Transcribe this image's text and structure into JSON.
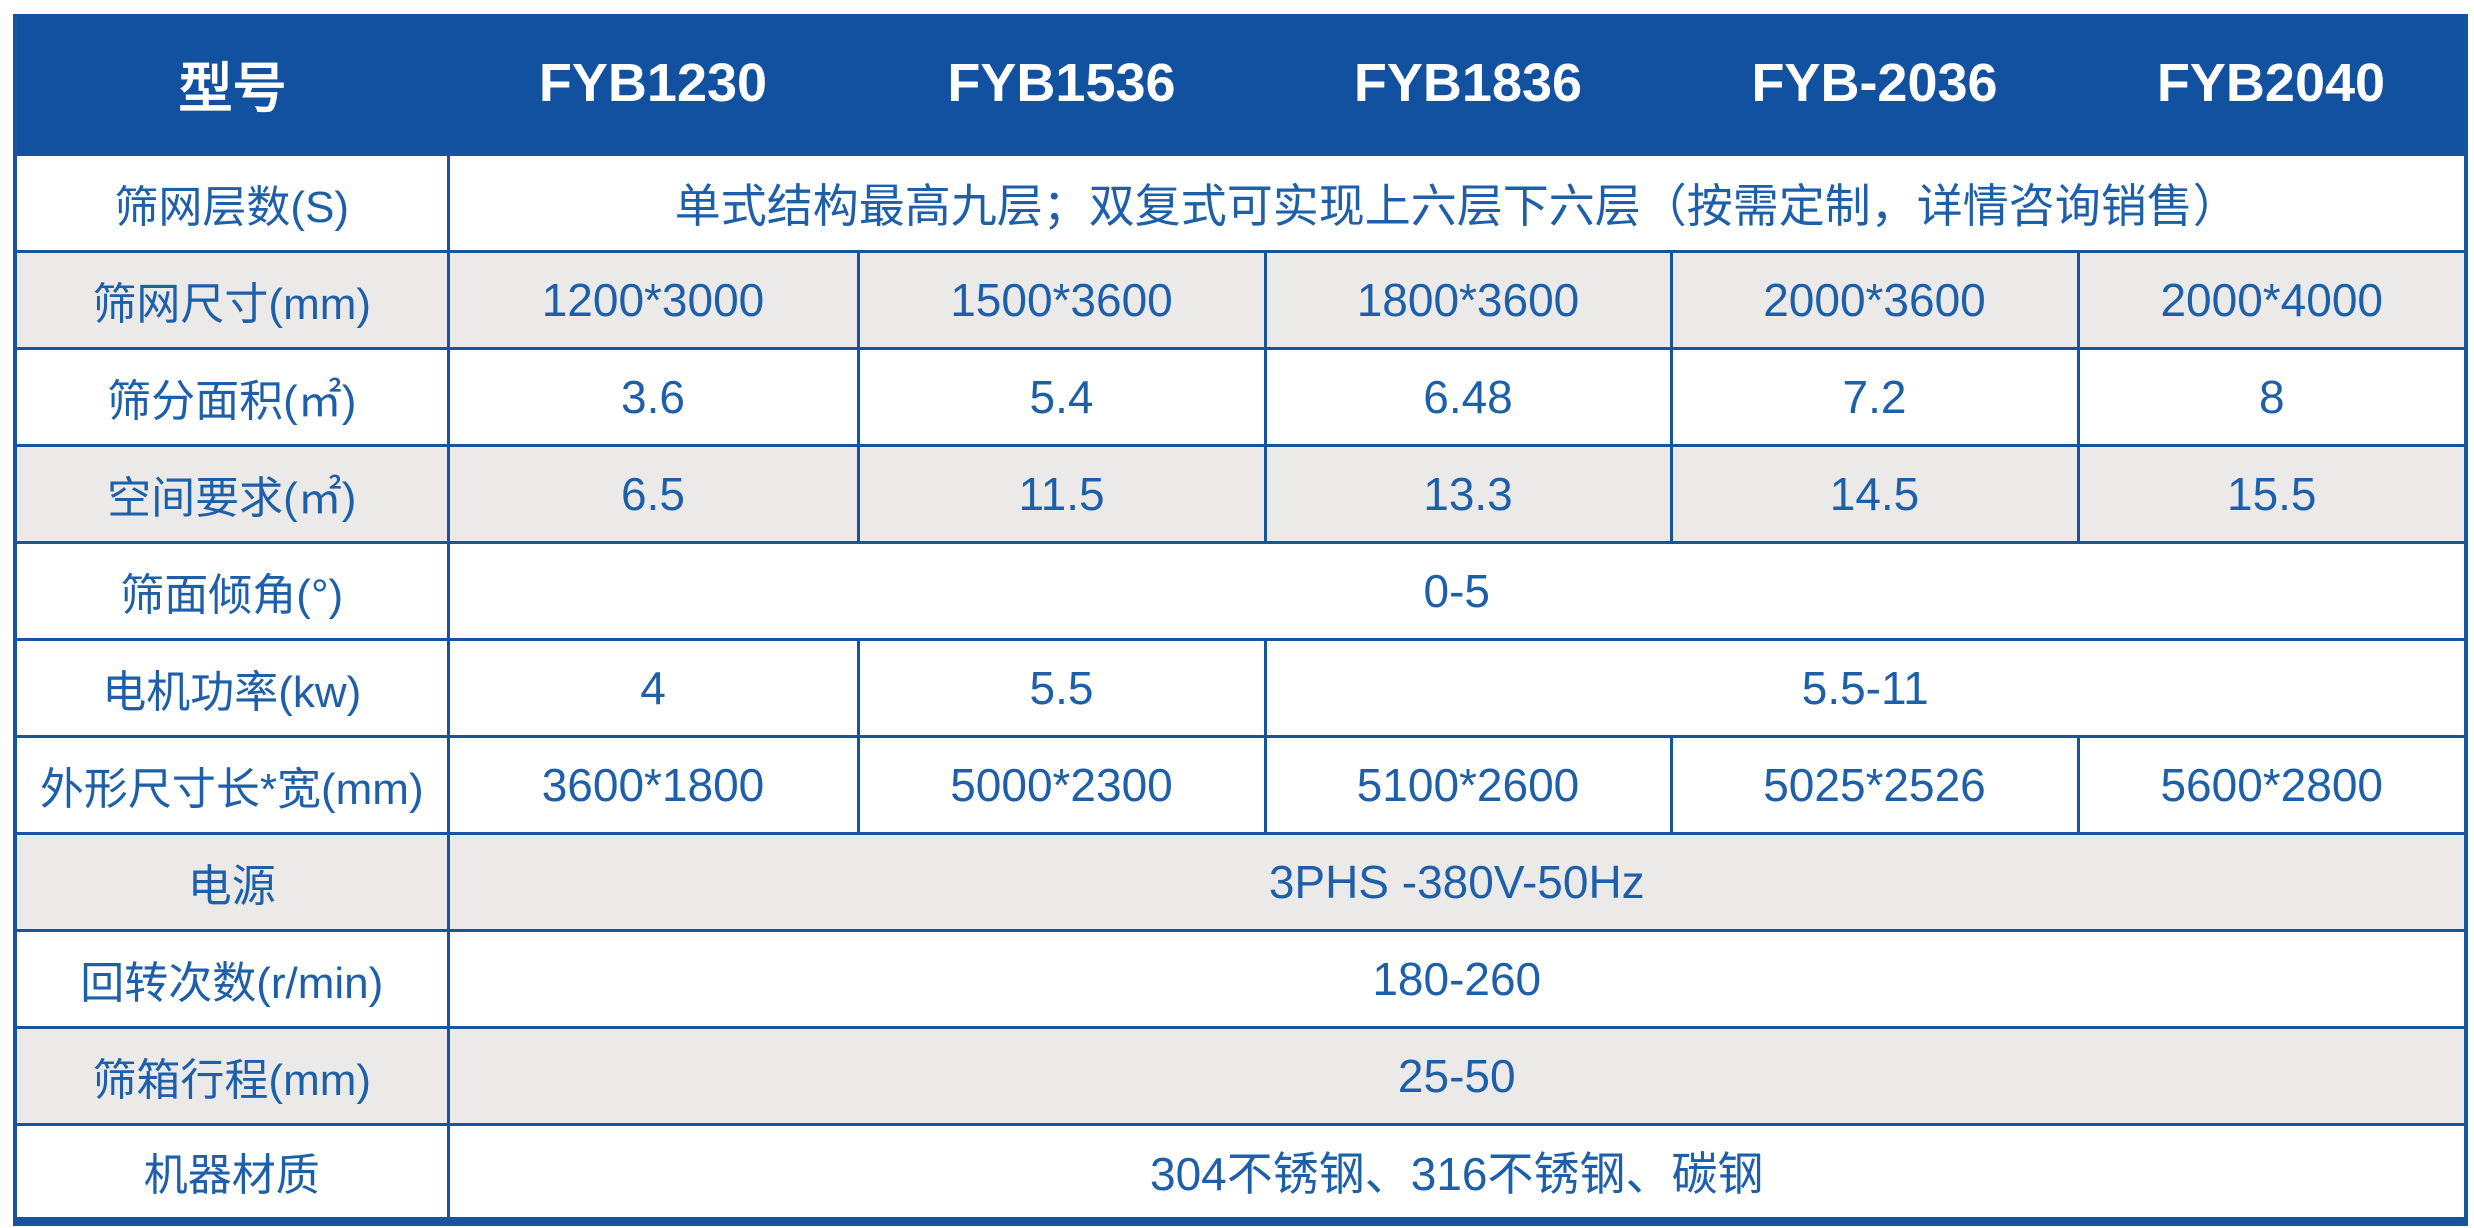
{
  "colors": {
    "header_bg": "#11519F",
    "header_text": "#FFFFFF",
    "cell_text": "#1D5FA9",
    "border": "#16549E",
    "row_shade": "#ECEAE9"
  },
  "table": {
    "header": {
      "label": "型号",
      "models": [
        "FYB1230",
        "FYB1536",
        "FYB1836",
        "FYB-2036",
        "FYB2040"
      ]
    },
    "rows": [
      {
        "label": "筛网层数(S)",
        "value": "单式结构最高九层；双复式可实现上六层下六层（按需定制，详情咨询销售）"
      },
      {
        "label": "筛网尺寸(mm)",
        "values": [
          "1200*3000",
          "1500*3600",
          "1800*3600",
          "2000*3600",
          "2000*4000"
        ]
      },
      {
        "label": "筛分面积(㎡)",
        "values": [
          "3.6",
          "5.4",
          "6.48",
          "7.2",
          "8"
        ]
      },
      {
        "label": "空间要求(㎡)",
        "values": [
          "6.5",
          "11.5",
          "13.3",
          "14.5",
          "15.5"
        ]
      },
      {
        "label": "筛面倾角(°)",
        "value": "0-5"
      },
      {
        "label": "电机功率(kw)",
        "values": [
          "4",
          "5.5"
        ],
        "span_value": "5.5-11"
      },
      {
        "label": "外形尺寸长*宽(mm)",
        "values": [
          "3600*1800",
          "5000*2300",
          "5100*2600",
          "5025*2526",
          "5600*2800"
        ]
      },
      {
        "label": "电源",
        "value": "3PHS -380V-50Hz"
      },
      {
        "label": "回转次数(r/min)",
        "value": "180-260"
      },
      {
        "label": "筛箱行程(mm)",
        "value": "25-50"
      },
      {
        "label": "机器材质",
        "value": "304不锈钢、316不锈钢、碳钢"
      }
    ]
  }
}
